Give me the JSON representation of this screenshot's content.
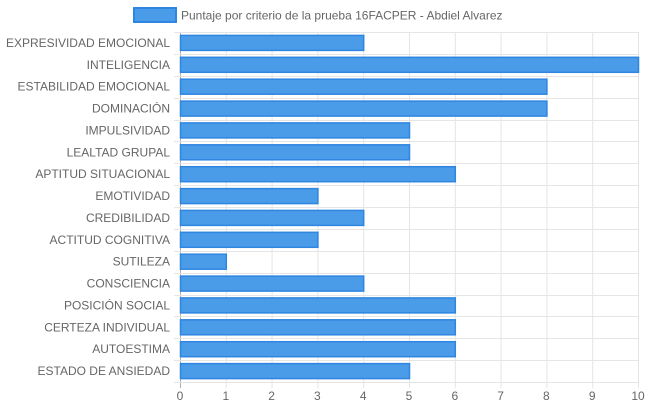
{
  "chart_data": {
    "type": "bar",
    "orientation": "horizontal",
    "legend": {
      "label": "Puntaje por criterio de la prueba 16FACPER - Abdiel Alvarez",
      "position": "top"
    },
    "categories": [
      "EXPRESIVIDAD EMOCIONAL",
      "INTELIGENCIA",
      "ESTABILIDAD EMOCIONAL",
      "DOMINACIÓN",
      "IMPULSIVIDAD",
      "LEALTAD GRUPAL",
      "APTITUD SITUACIONAL",
      "EMOTIVIDAD",
      "CREDIBILIDAD",
      "ACTITUD COGNITIVA",
      "SUTILEZA",
      "CONSCIENCIA",
      "POSICIÓN SOCIAL",
      "CERTEZA INDIVIDUAL",
      "AUTOESTIMA",
      "ESTADO DE ANSIEDAD"
    ],
    "series": [
      {
        "name": "Puntaje por criterio de la prueba 16FACPER - Abdiel Alvarez",
        "values": [
          4,
          10,
          8,
          8,
          5,
          5,
          6,
          3,
          4,
          3,
          1,
          4,
          6,
          6,
          6,
          5
        ]
      }
    ],
    "xlim": [
      0,
      10
    ],
    "xticks": [
      "0",
      "1",
      "2",
      "3",
      "4",
      "5",
      "6",
      "7",
      "8",
      "9",
      "10"
    ],
    "grid": true,
    "colors": {
      "bar_fill": "#4a9be8",
      "bar_stroke": "#2f86e0",
      "grid": "#e5e5e5",
      "axis_dark": "#b0b0b0",
      "text": "#666666"
    }
  }
}
